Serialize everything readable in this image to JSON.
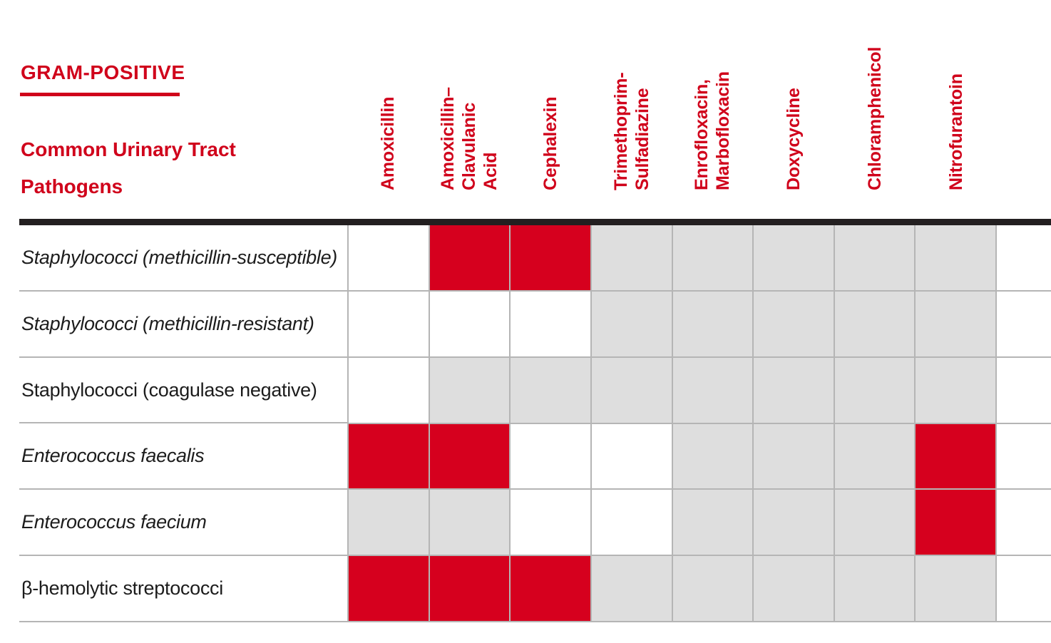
{
  "title": {
    "category": "GRAM-POSITIVE",
    "subtitle": "Common Urinary Tract Pathogens"
  },
  "columns": [
    {
      "id": "amoxicillin",
      "label": "Amoxicillin",
      "lines": [
        "Amoxicillin"
      ]
    },
    {
      "id": "amoxicillin-clavulanic-acid",
      "label": "Amoxicillin–Clavulanic Acid",
      "lines": [
        "Amoxicillin–",
        "Clavulanic",
        "Acid"
      ]
    },
    {
      "id": "cephalexin",
      "label": "Cephalexin",
      "lines": [
        "Cephalexin"
      ]
    },
    {
      "id": "trimethoprim-sulfadiazine",
      "label": "Trimethoprim-Sulfadiazine",
      "lines": [
        "Trimethoprim-",
        "Sulfadiazine"
      ]
    },
    {
      "id": "enrofloxacin-marbofloxacin",
      "label": "Enrofloxacin, Marbofloxacin",
      "lines": [
        "Enrofloxacin,",
        "Marbofloxacin"
      ]
    },
    {
      "id": "doxycycline",
      "label": "Doxycycline",
      "lines": [
        "Doxycycline"
      ]
    },
    {
      "id": "chloramphenicol",
      "label": "Chloramphenicol",
      "lines": [
        "Chloramphenicol"
      ]
    },
    {
      "id": "nitrofurantoin",
      "label": "Nitrofurantoin",
      "lines": [
        "Nitrofurantoin"
      ]
    }
  ],
  "rows": [
    {
      "pathogen": "Staphylococci (methicillin-susceptible)",
      "italic": true,
      "cells": [
        "white",
        "red",
        "red",
        "gray",
        "gray",
        "gray",
        "gray",
        "gray"
      ]
    },
    {
      "pathogen": "Staphylococci (methicillin-resistant)",
      "italic": true,
      "cells": [
        "white",
        "white",
        "white",
        "gray",
        "gray",
        "gray",
        "gray",
        "gray"
      ]
    },
    {
      "pathogen": "Staphylococci (coagulase negative)",
      "italic": false,
      "cells": [
        "white",
        "gray",
        "gray",
        "gray",
        "gray",
        "gray",
        "gray",
        "gray"
      ]
    },
    {
      "pathogen": "Enterococcus faecalis",
      "italic": true,
      "cells": [
        "red",
        "red",
        "white",
        "white",
        "gray",
        "gray",
        "gray",
        "red"
      ]
    },
    {
      "pathogen": "Enterococcus faecium",
      "italic": true,
      "cells": [
        "gray",
        "gray",
        "white",
        "white",
        "gray",
        "gray",
        "gray",
        "red"
      ]
    },
    {
      "pathogen": "β-hemolytic streptococci",
      "italic": false,
      "cells": [
        "red",
        "red",
        "red",
        "gray",
        "gray",
        "gray",
        "gray",
        "gray"
      ]
    }
  ],
  "colors": {
    "red": "#d6001e",
    "gray": "#dedede",
    "white": "#ffffff",
    "accent_text": "#d0021b",
    "grid_line": "#b5b5b5",
    "top_bar": "#231f20"
  },
  "chart_data": {
    "type": "heatmap",
    "title": "GRAM-POSITIVE — Common Urinary Tract Pathogens",
    "x_categories": [
      "Amoxicillin",
      "Amoxicillin–Clavulanic Acid",
      "Cephalexin",
      "Trimethoprim-Sulfadiazine",
      "Enrofloxacin, Marbofloxacin",
      "Doxycycline",
      "Chloramphenicol",
      "Nitrofurantoin"
    ],
    "y_categories": [
      "Staphylococci (methicillin-susceptible)",
      "Staphylococci (methicillin-resistant)",
      "Staphylococci (coagulase negative)",
      "Enterococcus faecalis",
      "Enterococcus faecium",
      "β-hemolytic streptococci"
    ],
    "values": [
      [
        "white",
        "red",
        "red",
        "gray",
        "gray",
        "gray",
        "gray",
        "gray"
      ],
      [
        "white",
        "white",
        "white",
        "gray",
        "gray",
        "gray",
        "gray",
        "gray"
      ],
      [
        "white",
        "gray",
        "gray",
        "gray",
        "gray",
        "gray",
        "gray",
        "gray"
      ],
      [
        "red",
        "red",
        "white",
        "white",
        "gray",
        "gray",
        "gray",
        "red"
      ],
      [
        "gray",
        "gray",
        "white",
        "white",
        "gray",
        "gray",
        "gray",
        "red"
      ],
      [
        "red",
        "red",
        "red",
        "gray",
        "gray",
        "gray",
        "gray",
        "gray"
      ]
    ],
    "color_key": {
      "red": "#d6001e",
      "gray": "#dedede",
      "white": "#ffffff"
    },
    "grid": true,
    "legend_position": "none"
  }
}
